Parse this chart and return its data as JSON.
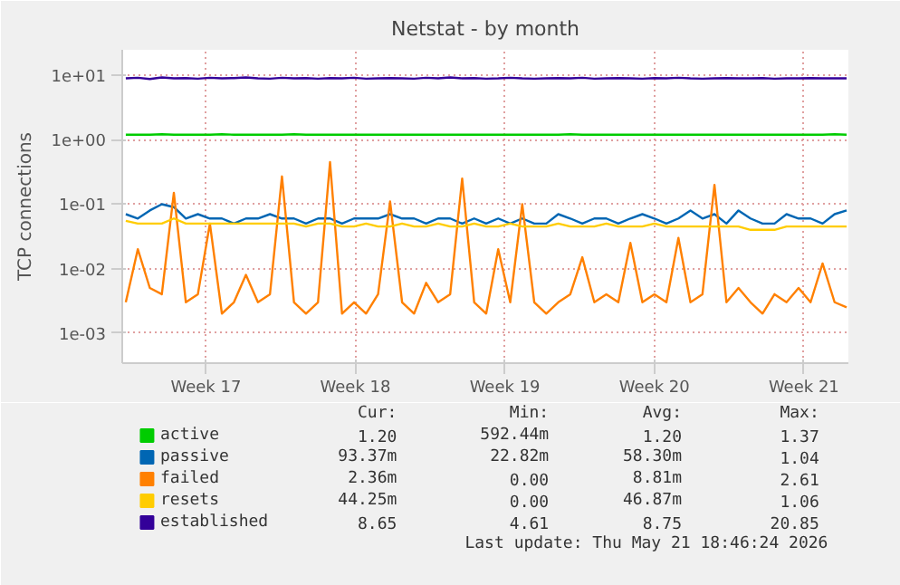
{
  "chart_data": {
    "type": "line",
    "title": "Netstat - by month",
    "ylabel": "TCP connections",
    "log": "y",
    "grid": true,
    "legend": "bottom",
    "marker": "none",
    "line_style": "solid",
    "xlim": [
      "2026-04-16T02:00",
      "2026-05-20T02:00"
    ],
    "ylim": [
      0.00034,
      25
    ],
    "xticks": [
      {
        "value": "2026-04-20",
        "label": "Week 17"
      },
      {
        "value": "2026-04-27",
        "label": "Week 18"
      },
      {
        "value": "2026-05-04",
        "label": "Week 19"
      },
      {
        "value": "2026-05-11",
        "label": "Week 20"
      },
      {
        "value": "2026-05-18",
        "label": "Week 21"
      }
    ],
    "yticks": [
      {
        "value": 0.001,
        "label": "1e-03"
      },
      {
        "value": 0.01,
        "label": "1e-02"
      },
      {
        "value": 0.1,
        "label": "1e-01"
      },
      {
        "value": 1,
        "label": "1e+00"
      },
      {
        "value": 10,
        "label": "1e+01"
      }
    ],
    "x": [
      "2026-04-16T06:00",
      "2026-04-16T19:30",
      "2026-04-17T09:00",
      "2026-04-17T22:30",
      "2026-04-18T12:00",
      "2026-04-19T01:30",
      "2026-04-19T15:00",
      "2026-04-20T04:30",
      "2026-04-20T18:00",
      "2026-04-21T07:30",
      "2026-04-21T21:00",
      "2026-04-22T10:30",
      "2026-04-23T00:00",
      "2026-04-23T13:30",
      "2026-04-24T03:00",
      "2026-04-24T16:30",
      "2026-04-25T06:00",
      "2026-04-25T19:30",
      "2026-04-26T09:00",
      "2026-04-26T22:30",
      "2026-04-27T12:00",
      "2026-04-28T01:30",
      "2026-04-28T15:00",
      "2026-04-29T04:30",
      "2026-04-29T18:00",
      "2026-04-30T07:30",
      "2026-04-30T21:00",
      "2026-05-01T10:30",
      "2026-05-02T00:00",
      "2026-05-02T13:30",
      "2026-05-03T03:00",
      "2026-05-03T16:30",
      "2026-05-04T06:00",
      "2026-05-04T19:30",
      "2026-05-05T09:00",
      "2026-05-05T22:30",
      "2026-05-06T12:00",
      "2026-05-07T01:30",
      "2026-05-07T15:00",
      "2026-05-08T04:30",
      "2026-05-08T18:00",
      "2026-05-09T07:30",
      "2026-05-09T21:00",
      "2026-05-10T10:30",
      "2026-05-11T00:00",
      "2026-05-11T13:30",
      "2026-05-12T03:00",
      "2026-05-12T16:30",
      "2026-05-13T06:00",
      "2026-05-13T19:30",
      "2026-05-14T09:00",
      "2026-05-14T22:30",
      "2026-05-15T12:00",
      "2026-05-16T01:30",
      "2026-05-16T15:00",
      "2026-05-17T04:30",
      "2026-05-17T18:00",
      "2026-05-18T07:30",
      "2026-05-18T21:00",
      "2026-05-19T10:30",
      "2026-05-20T00:00"
    ],
    "series": [
      {
        "name": "active",
        "color": "#00cc00",
        "values": [
          1.2,
          1.2,
          1.2,
          1.22,
          1.2,
          1.2,
          1.2,
          1.2,
          1.22,
          1.2,
          1.2,
          1.2,
          1.2,
          1.2,
          1.22,
          1.2,
          1.2,
          1.2,
          1.2,
          1.2,
          1.2,
          1.2,
          1.2,
          1.2,
          1.2,
          1.2,
          1.2,
          1.2,
          1.2,
          1.2,
          1.2,
          1.2,
          1.2,
          1.2,
          1.2,
          1.2,
          1.2,
          1.22,
          1.2,
          1.2,
          1.2,
          1.2,
          1.2,
          1.2,
          1.2,
          1.2,
          1.2,
          1.2,
          1.2,
          1.2,
          1.2,
          1.2,
          1.2,
          1.2,
          1.2,
          1.2,
          1.2,
          1.2,
          1.2,
          1.22,
          1.2
        ]
      },
      {
        "name": "passive",
        "color": "#0066b3",
        "values": [
          0.07,
          0.06,
          0.08,
          0.1,
          0.09,
          0.06,
          0.07,
          0.06,
          0.06,
          0.05,
          0.06,
          0.06,
          0.07,
          0.06,
          0.06,
          0.05,
          0.06,
          0.06,
          0.05,
          0.06,
          0.06,
          0.06,
          0.07,
          0.06,
          0.06,
          0.05,
          0.06,
          0.06,
          0.05,
          0.06,
          0.05,
          0.06,
          0.05,
          0.06,
          0.05,
          0.05,
          0.07,
          0.06,
          0.05,
          0.06,
          0.06,
          0.05,
          0.06,
          0.07,
          0.06,
          0.05,
          0.06,
          0.08,
          0.06,
          0.07,
          0.05,
          0.08,
          0.06,
          0.05,
          0.05,
          0.07,
          0.06,
          0.06,
          0.05,
          0.07,
          0.08
        ]
      },
      {
        "name": "failed",
        "color": "#ff8000",
        "values": [
          0.003,
          0.02,
          0.005,
          0.004,
          0.15,
          0.003,
          0.004,
          0.05,
          0.002,
          0.003,
          0.008,
          0.003,
          0.004,
          0.27,
          0.003,
          0.002,
          0.003,
          0.45,
          0.002,
          0.003,
          0.002,
          0.004,
          0.11,
          0.003,
          0.002,
          0.006,
          0.003,
          0.004,
          0.25,
          0.003,
          0.002,
          0.02,
          0.003,
          0.1,
          0.003,
          0.002,
          0.003,
          0.004,
          0.015,
          0.003,
          0.004,
          0.003,
          0.025,
          0.003,
          0.004,
          0.003,
          0.03,
          0.003,
          0.004,
          0.2,
          0.003,
          0.005,
          0.003,
          0.002,
          0.004,
          0.003,
          0.005,
          0.003,
          0.012,
          0.003,
          0.0025
        ]
      },
      {
        "name": "resets",
        "color": "#ffcc00",
        "values": [
          0.055,
          0.05,
          0.05,
          0.05,
          0.06,
          0.05,
          0.05,
          0.05,
          0.05,
          0.05,
          0.05,
          0.05,
          0.05,
          0.05,
          0.05,
          0.045,
          0.05,
          0.05,
          0.045,
          0.045,
          0.05,
          0.045,
          0.045,
          0.05,
          0.045,
          0.045,
          0.05,
          0.045,
          0.045,
          0.05,
          0.045,
          0.045,
          0.05,
          0.045,
          0.045,
          0.045,
          0.05,
          0.045,
          0.045,
          0.045,
          0.05,
          0.045,
          0.045,
          0.045,
          0.05,
          0.045,
          0.045,
          0.045,
          0.045,
          0.045,
          0.045,
          0.045,
          0.04,
          0.04,
          0.04,
          0.045,
          0.045,
          0.045,
          0.045,
          0.045,
          0.045
        ]
      },
      {
        "name": "established",
        "color": "#330099",
        "values": [
          9,
          9.2,
          8.8,
          9.3,
          9,
          9.1,
          8.9,
          9.2,
          9,
          9.1,
          9.3,
          9,
          8.9,
          9.2,
          9,
          9.1,
          8.9,
          9.1,
          9,
          9.2,
          8.9,
          9,
          9.1,
          9,
          8.9,
          9.2,
          9,
          9.3,
          9,
          9.1,
          8.9,
          9,
          9.2,
          9,
          8.9,
          9,
          9.1,
          9,
          9.2,
          8.9,
          9,
          9.1,
          9,
          8.9,
          9.1,
          9,
          9.2,
          9,
          8.9,
          9,
          9.1,
          9,
          9,
          9.1,
          8.9,
          9,
          9,
          9.1,
          9,
          9,
          9
        ]
      }
    ],
    "annotations": [
      "Cur: Min: Avg: Max:",
      "1.20 592.44m 1.20 1.37",
      "93.37m 22.82m 58.30m 1.04",
      "2.36m 0.00 8.81m 2.61",
      "44.25m 0.00 46.87m 1.06",
      "8.65 4.61 8.75 20.85",
      "Last update: Thu May 21 18:46:24 2026"
    ]
  }
}
